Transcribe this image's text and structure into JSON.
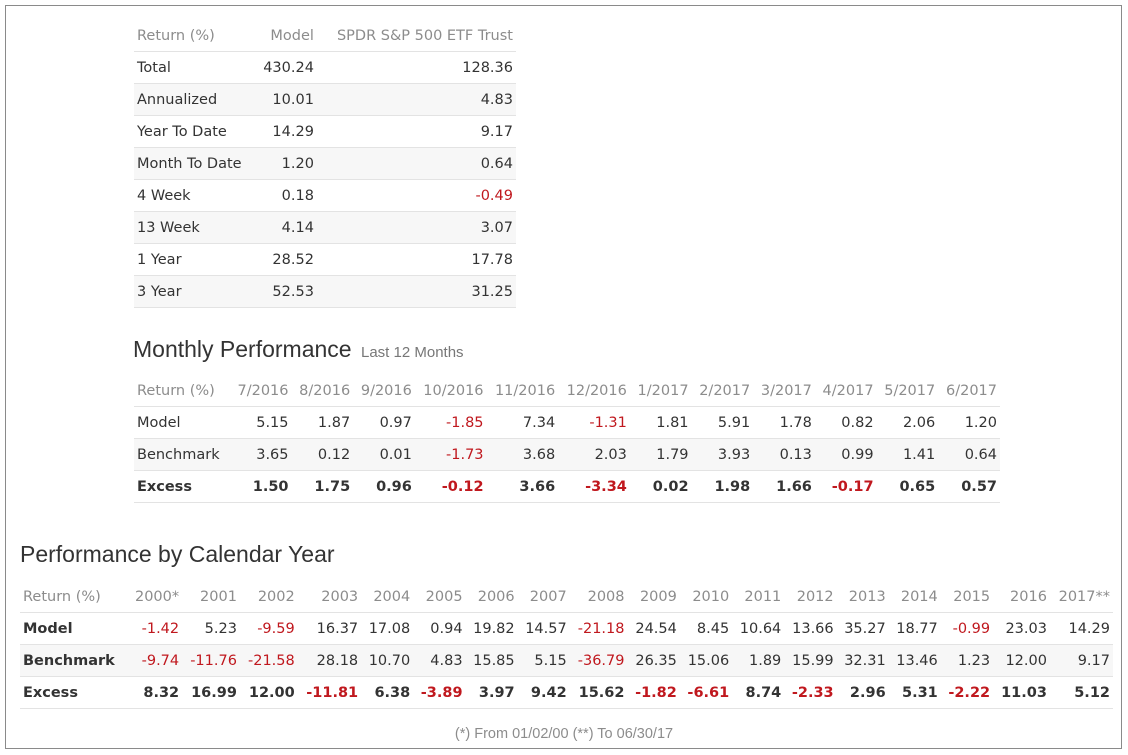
{
  "returns_table": {
    "headers": [
      "Return (%)",
      "Model",
      "SPDR S&P 500 ETF Trust"
    ],
    "rows": [
      [
        "Total",
        "430.24",
        "128.36"
      ],
      [
        "Annualized",
        "10.01",
        "4.83"
      ],
      [
        "Year To Date",
        "14.29",
        "9.17"
      ],
      [
        "Month To Date",
        "1.20",
        "0.64"
      ],
      [
        "4 Week",
        "0.18",
        "-0.49"
      ],
      [
        "13 Week",
        "4.14",
        "3.07"
      ],
      [
        "1 Year",
        "28.52",
        "17.78"
      ],
      [
        "3 Year",
        "52.53",
        "31.25"
      ]
    ]
  },
  "monthly": {
    "title": "Monthly Performance",
    "subtitle": "Last 12 Months",
    "headers": [
      "Return (%)",
      "7/2016",
      "8/2016",
      "9/2016",
      "10/2016",
      "11/2016",
      "12/2016",
      "1/2017",
      "2/2017",
      "3/2017",
      "4/2017",
      "5/2017",
      "6/2017"
    ],
    "rows": [
      [
        "Model",
        "5.15",
        "1.87",
        "0.97",
        "-1.85",
        "7.34",
        "-1.31",
        "1.81",
        "5.91",
        "1.78",
        "0.82",
        "2.06",
        "1.20"
      ],
      [
        "Benchmark",
        "3.65",
        "0.12",
        "0.01",
        "-1.73",
        "3.68",
        "2.03",
        "1.79",
        "3.93",
        "0.13",
        "0.99",
        "1.41",
        "0.64"
      ],
      [
        "Excess",
        "1.50",
        "1.75",
        "0.96",
        "-0.12",
        "3.66",
        "-3.34",
        "0.02",
        "1.98",
        "1.66",
        "-0.17",
        "0.65",
        "0.57"
      ]
    ]
  },
  "calendar": {
    "title": "Performance by Calendar Year",
    "headers": [
      "Return (%)",
      "2000*",
      "2001",
      "2002",
      "2003",
      "2004",
      "2005",
      "2006",
      "2007",
      "2008",
      "2009",
      "2010",
      "2011",
      "2012",
      "2013",
      "2014",
      "2015",
      "2016",
      "2017**"
    ],
    "rows": [
      [
        "Model",
        "-1.42",
        "5.23",
        "-9.59",
        "16.37",
        "17.08",
        "0.94",
        "19.82",
        "14.57",
        "-21.18",
        "24.54",
        "8.45",
        "10.64",
        "13.66",
        "35.27",
        "18.77",
        "-0.99",
        "23.03",
        "14.29"
      ],
      [
        "Benchmark",
        "-9.74",
        "-11.76",
        "-21.58",
        "28.18",
        "10.70",
        "4.83",
        "15.85",
        "5.15",
        "-36.79",
        "26.35",
        "15.06",
        "1.89",
        "15.99",
        "32.31",
        "13.46",
        "1.23",
        "12.00",
        "9.17"
      ],
      [
        "Excess",
        "8.32",
        "16.99",
        "12.00",
        "-11.81",
        "6.38",
        "-3.89",
        "3.97",
        "9.42",
        "15.62",
        "-1.82",
        "-6.61",
        "8.74",
        "-2.33",
        "2.96",
        "5.31",
        "-2.22",
        "11.03",
        "5.12"
      ]
    ],
    "footnote": "(*) From 01/02/00  (**) To 06/30/17"
  },
  "colors": {
    "negative": "#c0181e",
    "header_text": "#8c8c8c",
    "row_alt": "#f7f7f7"
  }
}
